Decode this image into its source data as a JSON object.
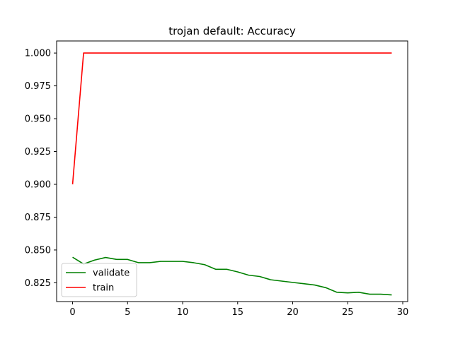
{
  "chart_data": {
    "type": "line",
    "title": "trojan default: Accuracy",
    "xlabel": "",
    "ylabel": "",
    "xlim": [
      -1.45,
      30.45
    ],
    "ylim": [
      0.8107,
      1.0092
    ],
    "xticks": [
      0,
      5,
      10,
      15,
      20,
      25,
      30
    ],
    "yticks": [
      0.825,
      0.85,
      0.875,
      0.9,
      0.925,
      0.95,
      0.975,
      1.0
    ],
    "ytick_labels": [
      "0.825",
      "0.850",
      "0.875",
      "0.900",
      "0.925",
      "0.950",
      "0.975",
      "1.000"
    ],
    "grid": false,
    "legend_position": "lower-left",
    "x": [
      0,
      1,
      2,
      3,
      4,
      5,
      6,
      7,
      8,
      9,
      10,
      11,
      12,
      13,
      14,
      15,
      16,
      17,
      18,
      19,
      20,
      21,
      22,
      23,
      24,
      25,
      26,
      27,
      28,
      29
    ],
    "series": [
      {
        "name": "validate",
        "color": "#008000",
        "values": [
          0.8445,
          0.8393,
          0.8423,
          0.8443,
          0.8428,
          0.8428,
          0.8403,
          0.8403,
          0.8413,
          0.8413,
          0.8413,
          0.8403,
          0.8388,
          0.8353,
          0.8353,
          0.8333,
          0.8308,
          0.8298,
          0.8273,
          0.8263,
          0.8253,
          0.8243,
          0.8233,
          0.8213,
          0.8178,
          0.8173,
          0.8178,
          0.8163,
          0.8163,
          0.8158
        ]
      },
      {
        "name": "train",
        "color": "#ff0000",
        "values": [
          0.9,
          1.0,
          1.0,
          1.0,
          1.0,
          1.0,
          1.0,
          1.0,
          1.0,
          1.0,
          1.0,
          1.0,
          1.0,
          1.0,
          1.0,
          1.0,
          1.0,
          1.0,
          1.0,
          1.0,
          1.0,
          1.0,
          1.0,
          1.0,
          1.0,
          1.0,
          1.0,
          1.0,
          1.0,
          1.0
        ]
      }
    ]
  }
}
